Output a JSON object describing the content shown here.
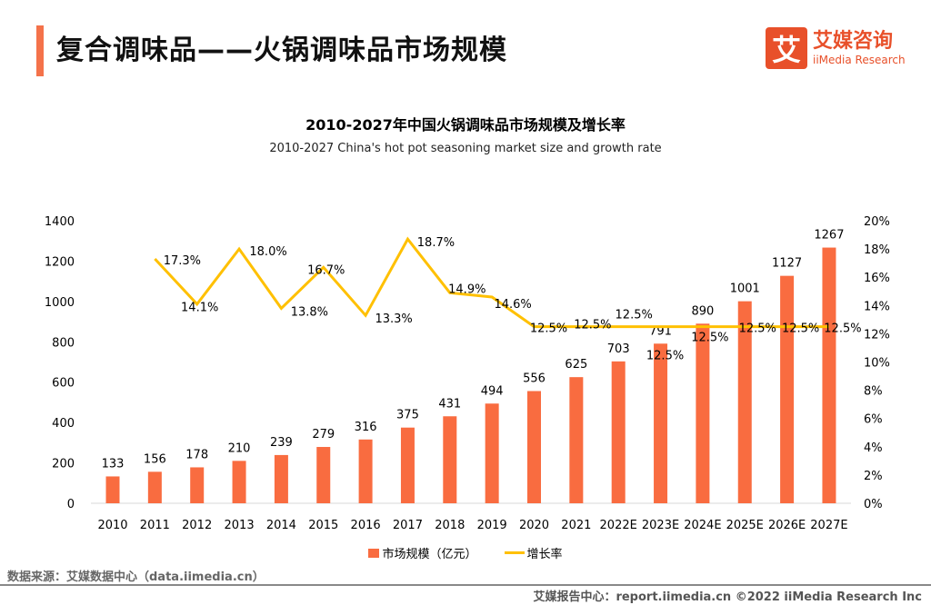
{
  "header": {
    "title": "复合调味品——火锅调味品市场规模",
    "logo_mark": "艾",
    "logo_cn": "艾媒咨询",
    "logo_en": "iiMedia Research"
  },
  "chart_data": {
    "type": "bar+line",
    "title": "2010-2027年中国火锅调味品市场规模及增长率",
    "subtitle": "2010-2027 China's hot pot seasoning market size and growth rate",
    "categories": [
      "2010",
      "2011",
      "2012",
      "2013",
      "2014",
      "2015",
      "2016",
      "2017",
      "2018",
      "2019",
      "2020",
      "2021",
      "2022E",
      "2023E",
      "2024E",
      "2025E",
      "2026E",
      "2027E"
    ],
    "series": [
      {
        "name": "市场规模（亿元）",
        "type": "bar",
        "axis": "left",
        "color": "#f96c40",
        "values": [
          133,
          156,
          178,
          210,
          239,
          279,
          316,
          375,
          431,
          494,
          556,
          625,
          703,
          791,
          890,
          1001,
          1127,
          1267
        ]
      },
      {
        "name": "增长率",
        "type": "line",
        "axis": "right",
        "color": "#ffc000",
        "values": [
          null,
          17.3,
          14.1,
          18.0,
          13.8,
          16.7,
          13.3,
          18.7,
          14.9,
          14.6,
          12.5,
          12.5,
          12.5,
          12.5,
          12.5,
          12.5,
          12.5,
          12.5
        ]
      }
    ],
    "y_left": {
      "range": [
        0,
        1400
      ],
      "ticks": [
        "0",
        "200",
        "400",
        "600",
        "800",
        "1000",
        "1200",
        "1400"
      ]
    },
    "y_right": {
      "range": [
        0,
        20
      ],
      "ticks": [
        "0%",
        "2%",
        "4%",
        "6%",
        "8%",
        "10%",
        "12%",
        "14%",
        "16%",
        "18%",
        "20%"
      ]
    },
    "grid": false,
    "legend": "bottom"
  },
  "legend": {
    "bar": "市场规模（亿元）",
    "line": "增长率"
  },
  "source": "数据来源：艾媒数据中心（data.iimedia.cn）",
  "footer": "艾媒报告中心：report.iimedia.cn   ©2022  iiMedia Research  Inc"
}
